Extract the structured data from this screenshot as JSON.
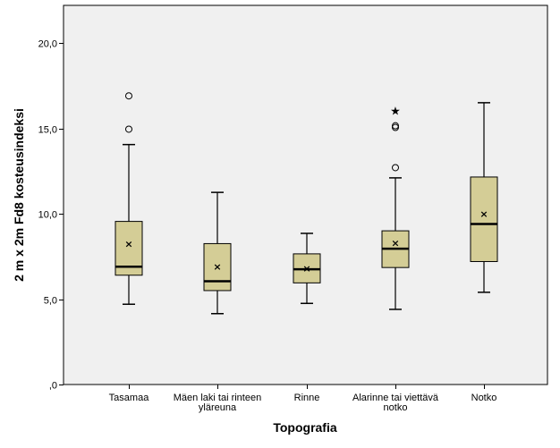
{
  "chart_data": {
    "type": "boxplot",
    "xlabel": "Topografia",
    "ylabel": "2 m x 2m Fd8 kosteusindeksi",
    "ylim": [
      0,
      22.2
    ],
    "yticks": [
      {
        "value": 0,
        "label": ",0"
      },
      {
        "value": 5,
        "label": "5,0"
      },
      {
        "value": 10,
        "label": "10,0"
      },
      {
        "value": 15,
        "label": "15,0"
      },
      {
        "value": 20,
        "label": "20,0"
      }
    ],
    "grid": false,
    "colors": {
      "plot_background": "#f0f0f0",
      "box_fill": "#d4cd96",
      "stroke": "#000000"
    },
    "categories": [
      {
        "label": [
          "Tasamaa"
        ],
        "min": 4.7,
        "q1": 6.4,
        "median": 6.9,
        "q3": 9.55,
        "max": 14.05,
        "mean": 8.25,
        "outliers": [
          {
            "value": 14.95,
            "marker": "circle"
          },
          {
            "value": 16.9,
            "marker": "circle"
          }
        ]
      },
      {
        "label": [
          "Mäen laki tai rinteen",
          "yläreuna"
        ],
        "min": 4.15,
        "q1": 5.5,
        "median": 6.05,
        "q3": 8.25,
        "max": 11.25,
        "mean": 6.9,
        "outliers": []
      },
      {
        "label": [
          "Rinne"
        ],
        "min": 4.75,
        "q1": 5.95,
        "median": 6.75,
        "q3": 7.65,
        "max": 8.85,
        "mean": 6.8,
        "outliers": []
      },
      {
        "label": [
          "Alarinne tai viettävä",
          "notko"
        ],
        "min": 4.4,
        "q1": 6.85,
        "median": 7.95,
        "q3": 9.0,
        "max": 12.1,
        "mean": 8.3,
        "outliers": [
          {
            "value": 12.7,
            "marker": "circle"
          },
          {
            "value": 15.05,
            "marker": "circle"
          },
          {
            "value": 15.15,
            "marker": "circle"
          },
          {
            "value": 16.05,
            "marker": "star"
          }
        ]
      },
      {
        "label": [
          "Notko"
        ],
        "min": 5.4,
        "q1": 7.2,
        "median": 9.4,
        "q3": 12.15,
        "max": 16.5,
        "mean": 10.0,
        "outliers": []
      }
    ]
  }
}
